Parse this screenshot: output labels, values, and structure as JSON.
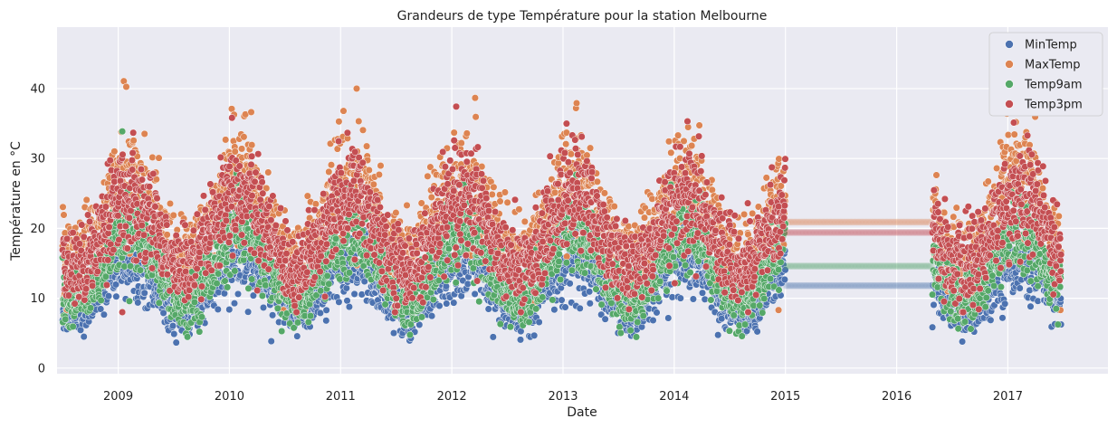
{
  "chart_data": {
    "type": "scatter",
    "title": "Grandeurs de type Température pour la station Melbourne",
    "xlabel": "Date",
    "ylabel": "Température en °C",
    "xlim": [
      2008.45,
      2017.9
    ],
    "ylim": [
      -0.8,
      48.8
    ],
    "x_ticks": [
      2009,
      2010,
      2011,
      2012,
      2013,
      2014,
      2015,
      2016,
      2017
    ],
    "y_ticks": [
      0,
      10,
      20,
      30,
      40
    ],
    "grid": true,
    "legend_position": "top-right",
    "data_start": 2008.5,
    "data_end": 2017.48,
    "gap": {
      "start": 2015.0,
      "end": 2016.32
    },
    "gap_fill_values": {
      "MinTemp": 11.8,
      "MaxTemp": 20.9,
      "Temp9am": 14.6,
      "Temp3pm": 19.4
    },
    "series": [
      {
        "name": "MinTemp",
        "color": "#4c72b0",
        "seasonal_mean": 11.8,
        "seasonal_amplitude": 3.8,
        "noise": 2.6,
        "peak_fraction": 0.1,
        "extreme_max": 28.6,
        "extreme_min": 1.4
      },
      {
        "name": "MaxTemp",
        "color": "#dd8452",
        "seasonal_mean": 20.9,
        "seasonal_amplitude": 5.6,
        "noise": 4.2,
        "peak_fraction": 0.1,
        "extreme_max": 46.4,
        "extreme_min": 8.3
      },
      {
        "name": "Temp9am",
        "color": "#55a868",
        "seasonal_mean": 14.6,
        "seasonal_amplitude": 4.8,
        "noise": 2.9,
        "peak_fraction": 0.1,
        "extreme_max": 35.2,
        "extreme_min": 2.0
      },
      {
        "name": "Temp3pm",
        "color": "#c44e52",
        "seasonal_mean": 19.4,
        "seasonal_amplitude": 5.2,
        "noise": 3.9,
        "peak_fraction": 0.1,
        "extreme_max": 44.0,
        "extreme_min": 8.0
      }
    ]
  }
}
